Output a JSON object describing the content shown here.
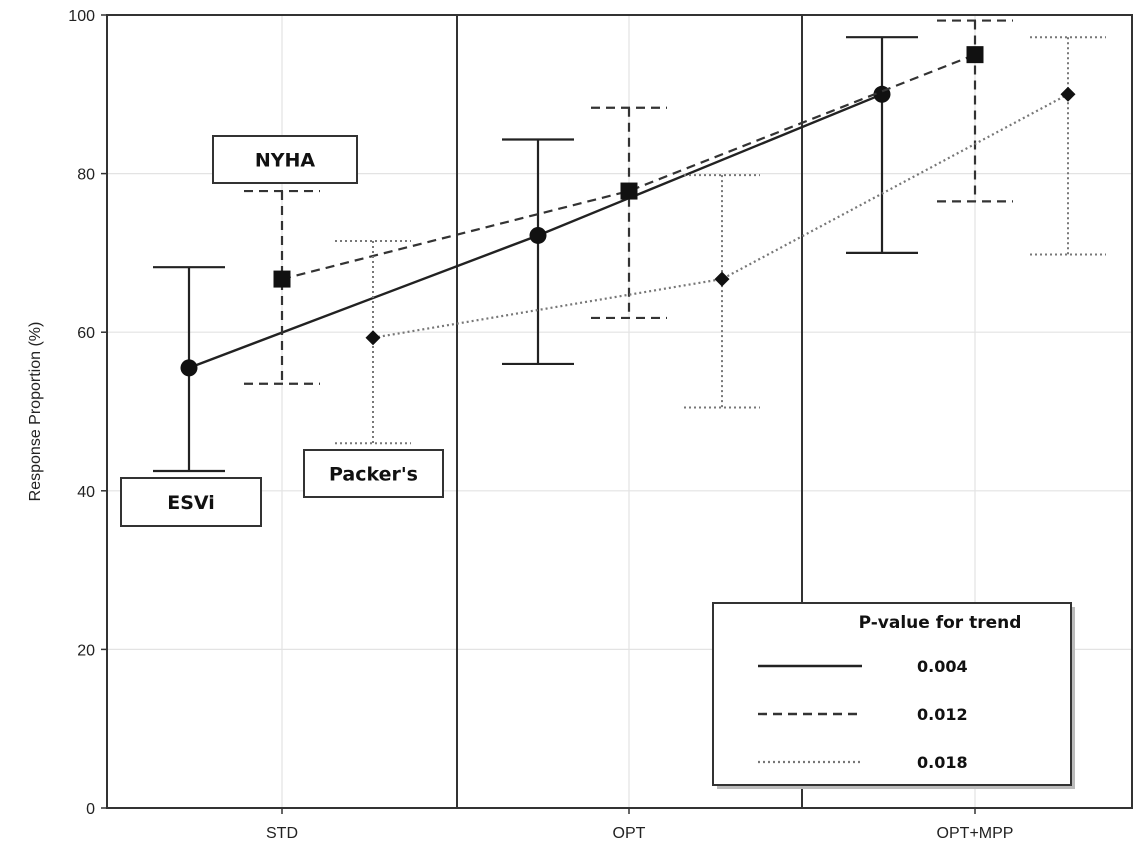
{
  "chart_data": {
    "type": "line",
    "title": "",
    "xlabel": "",
    "ylabel": "Response Proportion (%)",
    "ylim": [
      0,
      100
    ],
    "yticks": [
      0,
      20,
      40,
      60,
      80,
      100
    ],
    "categories": [
      "STD",
      "OPT",
      "OPT+MPP"
    ],
    "grid": true,
    "series": [
      {
        "name": "ESVi",
        "line_style": "solid",
        "marker": "circle",
        "values": [
          55.5,
          72.2,
          90.0
        ],
        "ci_low": [
          42.5,
          56.0,
          70.0
        ],
        "ci_high": [
          68.2,
          84.3,
          97.2
        ]
      },
      {
        "name": "NYHA",
        "line_style": "dashed",
        "marker": "square",
        "values": [
          66.7,
          77.8,
          95.0
        ],
        "ci_low": [
          53.5,
          61.8,
          76.5
        ],
        "ci_high": [
          77.8,
          88.3,
          99.3
        ]
      },
      {
        "name": "Packer's",
        "line_style": "dotted",
        "marker": "diamond",
        "values": [
          59.3,
          66.7,
          90.0
        ],
        "ci_low": [
          46.0,
          50.5,
          69.8
        ],
        "ci_high": [
          71.5,
          79.8,
          97.2
        ]
      }
    ],
    "series_labels": [
      "NYHA",
      "Packer's",
      "ESVi"
    ],
    "legend": {
      "placement": "bottom-right",
      "title": "P-value for trend",
      "entries": [
        {
          "style": "solid",
          "label": "0.004"
        },
        {
          "style": "dashed",
          "label": "0.012"
        },
        {
          "style": "dotted",
          "label": "0.018"
        }
      ]
    }
  }
}
